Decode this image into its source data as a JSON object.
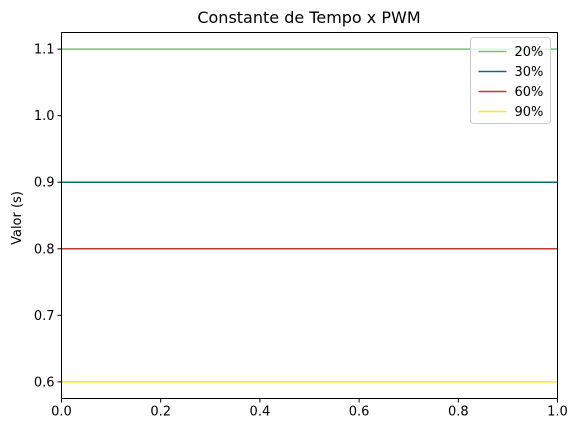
{
  "chart_data": {
    "type": "line",
    "title": "Constante de Tempo x PWM",
    "xlabel": "",
    "ylabel": "Valor (s)",
    "xlim": [
      0.0,
      1.0
    ],
    "ylim": [
      0.575,
      1.125
    ],
    "grid": false,
    "legend_position": "top-right",
    "x_ticks": [
      0.0,
      0.2,
      0.4,
      0.6,
      0.8,
      1.0
    ],
    "x_tick_labels": [
      "0.0",
      "0.2",
      "0.4",
      "0.6",
      "0.8",
      "1.0"
    ],
    "y_ticks": [
      0.6,
      0.7,
      0.8,
      0.9,
      1.0,
      1.1
    ],
    "y_tick_labels": [
      "0.6",
      "0.7",
      "0.8",
      "0.9",
      "1.0",
      "1.1"
    ],
    "series": [
      {
        "name": "20%",
        "x": [
          0.0,
          1.0
        ],
        "y": [
          1.1,
          1.1
        ],
        "color": "#74c476"
      },
      {
        "name": "30%",
        "x": [
          0.0,
          1.0
        ],
        "y": [
          0.9,
          0.9
        ],
        "color": "#0b6e65"
      },
      {
        "name": "60%",
        "x": [
          0.0,
          1.0
        ],
        "y": [
          0.8,
          0.8
        ],
        "color": "#c0392b"
      },
      {
        "name": "90%",
        "x": [
          0.0,
          1.0
        ],
        "y": [
          0.6,
          0.6
        ],
        "color": "#f5ea1c"
      }
    ]
  }
}
